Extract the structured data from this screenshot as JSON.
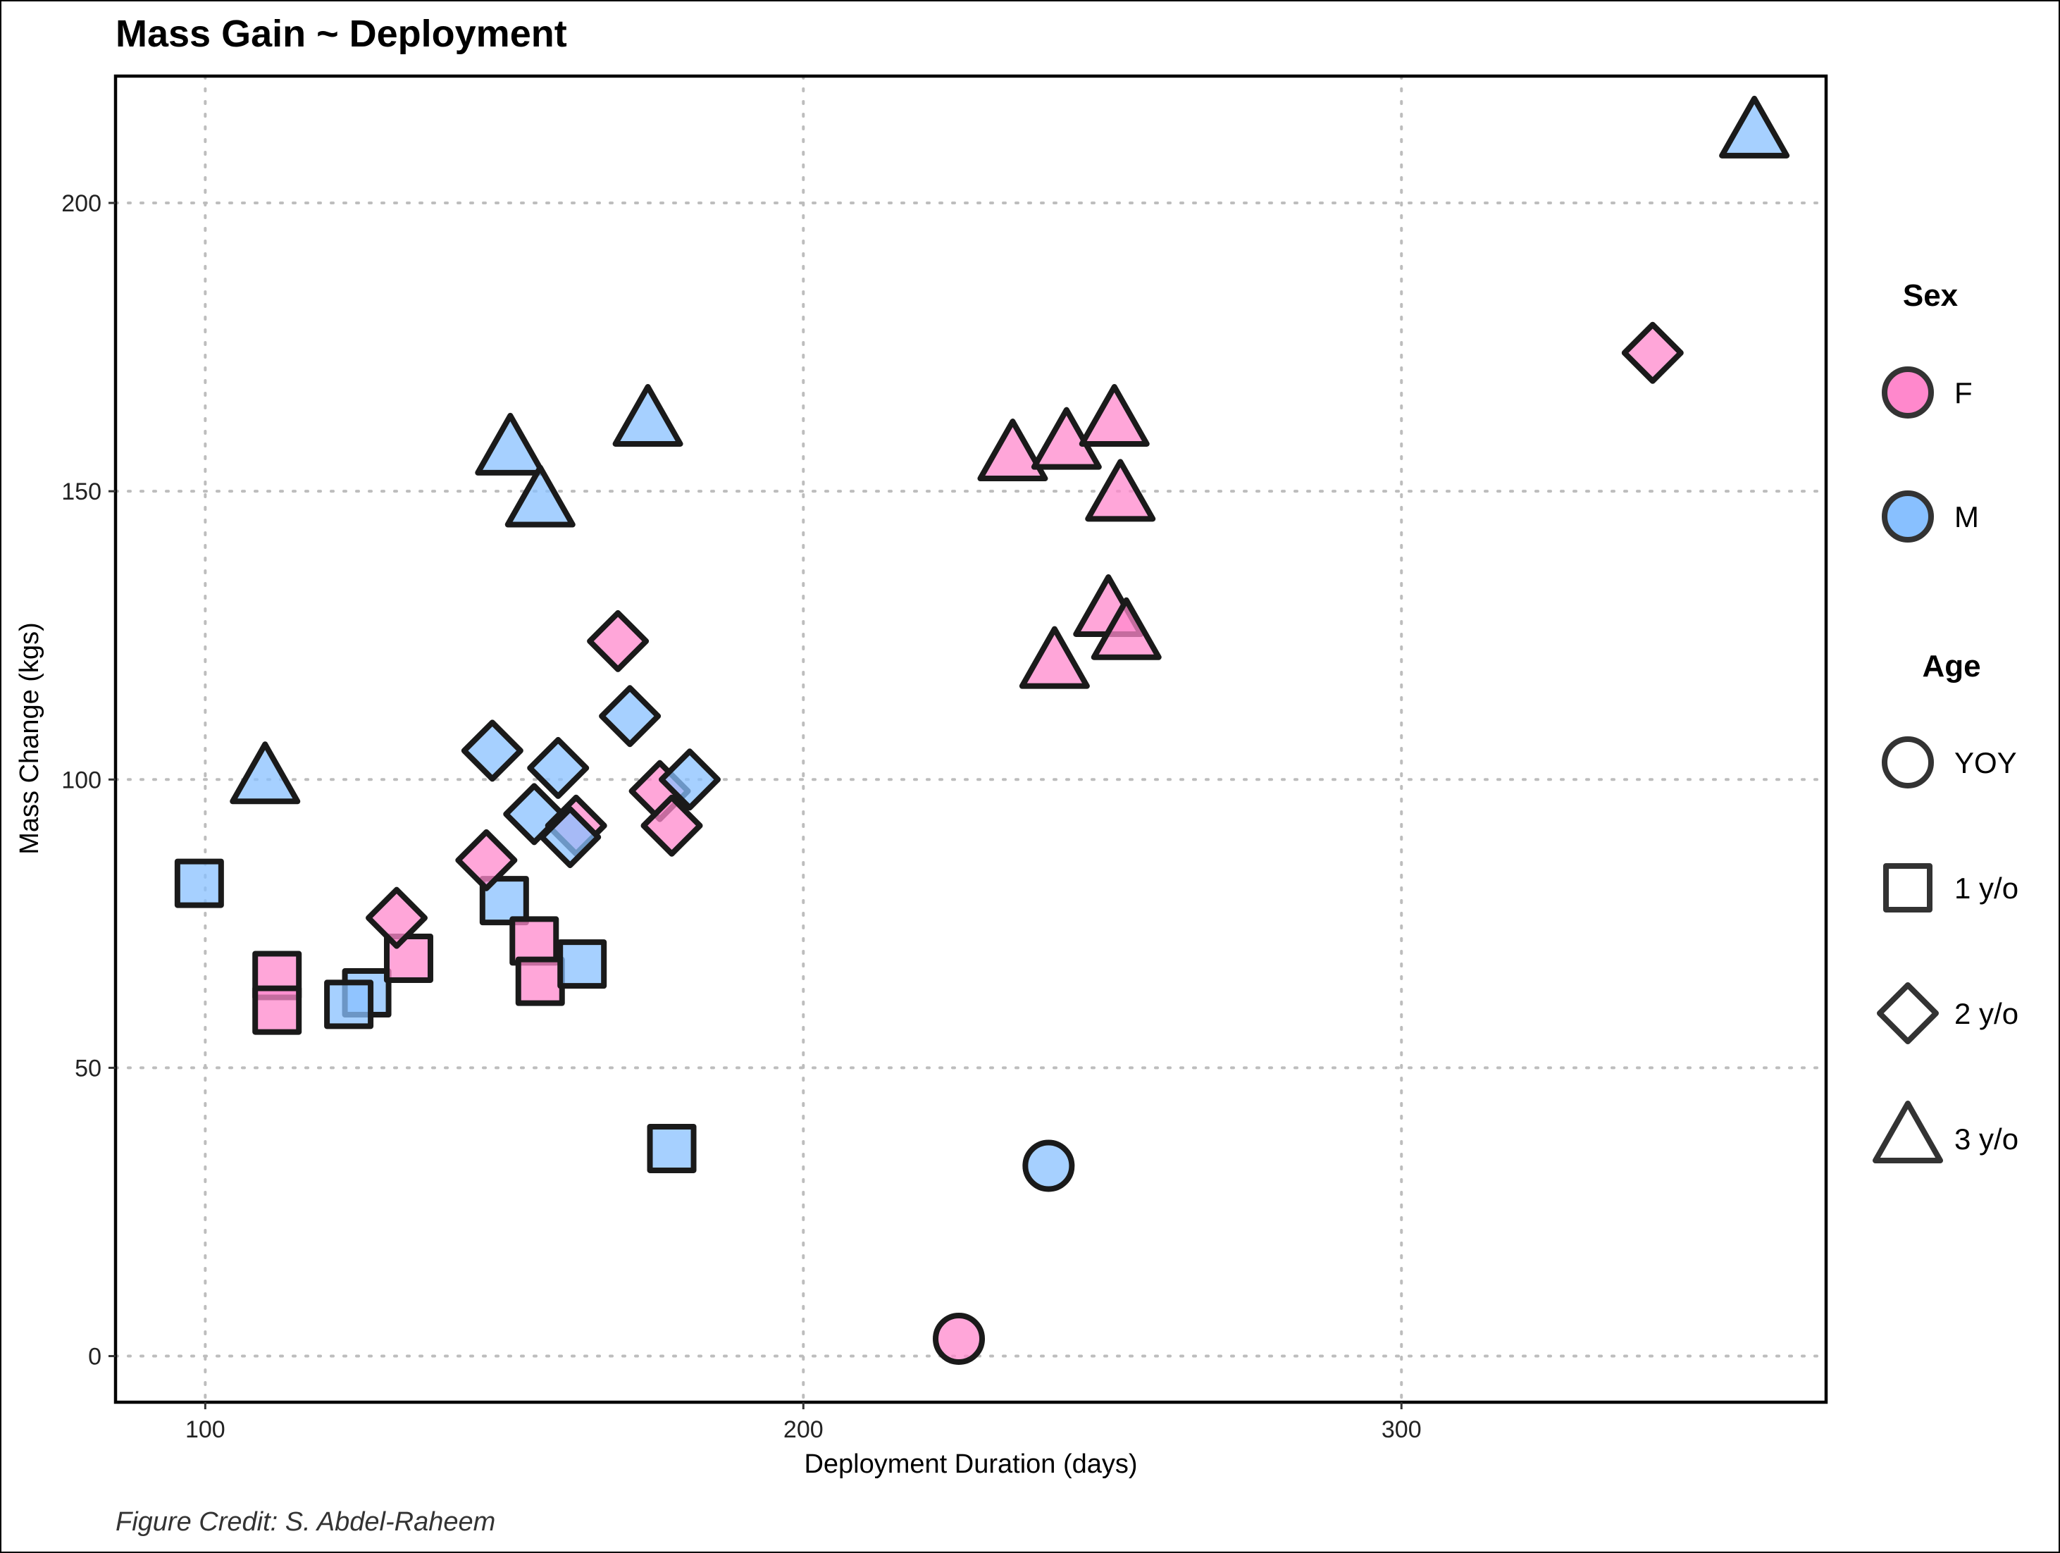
{
  "chart_data": {
    "type": "scatter",
    "title": "Mass Gain ~ Deployment",
    "xlabel": "Deployment Duration (days)",
    "ylabel": "Mass Change (kgs)",
    "xlim": [
      85,
      371
    ],
    "ylim": [
      -8,
      222
    ],
    "x_ticks": [
      100,
      200,
      300
    ],
    "y_ticks": [
      0,
      50,
      100,
      150,
      200
    ],
    "grid": true,
    "legend_position": "right",
    "caption": "Figure Credit: S. Abdel-Raheem",
    "colors": {
      "F": "#ff88cc",
      "M": "#88c0ff"
    },
    "legend": {
      "color_title": "Sex",
      "color_entries": [
        {
          "key": "F",
          "label": "F"
        },
        {
          "key": "M",
          "label": "M"
        }
      ],
      "shape_title": "Age",
      "shape_entries": [
        {
          "key": "YOY",
          "label": "YOY",
          "shape": "circle"
        },
        {
          "key": "1",
          "label": "1 y/o",
          "shape": "square"
        },
        {
          "key": "2",
          "label": "2 y/o",
          "shape": "diamond"
        },
        {
          "key": "3",
          "label": "3 y/o",
          "shape": "triangle"
        }
      ]
    },
    "points": [
      {
        "x": 99,
        "y": 82,
        "sex": "M",
        "age": "1"
      },
      {
        "x": 112,
        "y": 66,
        "sex": "F",
        "age": "1"
      },
      {
        "x": 112,
        "y": 60,
        "sex": "F",
        "age": "1"
      },
      {
        "x": 127,
        "y": 63,
        "sex": "M",
        "age": "1"
      },
      {
        "x": 124,
        "y": 61,
        "sex": "M",
        "age": "1"
      },
      {
        "x": 134,
        "y": 69,
        "sex": "F",
        "age": "1"
      },
      {
        "x": 150,
        "y": 79,
        "sex": "M",
        "age": "1"
      },
      {
        "x": 155,
        "y": 72,
        "sex": "F",
        "age": "1"
      },
      {
        "x": 156,
        "y": 65,
        "sex": "F",
        "age": "1"
      },
      {
        "x": 163,
        "y": 68,
        "sex": "M",
        "age": "1"
      },
      {
        "x": 178,
        "y": 36,
        "sex": "M",
        "age": "1"
      },
      {
        "x": 132,
        "y": 76,
        "sex": "F",
        "age": "2"
      },
      {
        "x": 147,
        "y": 86,
        "sex": "F",
        "age": "2"
      },
      {
        "x": 148,
        "y": 105,
        "sex": "M",
        "age": "2"
      },
      {
        "x": 159,
        "y": 102,
        "sex": "M",
        "age": "2"
      },
      {
        "x": 155,
        "y": 94,
        "sex": "M",
        "age": "2"
      },
      {
        "x": 162,
        "y": 92,
        "sex": "F",
        "age": "2"
      },
      {
        "x": 161,
        "y": 90,
        "sex": "M",
        "age": "2"
      },
      {
        "x": 169,
        "y": 124,
        "sex": "F",
        "age": "2"
      },
      {
        "x": 171,
        "y": 111,
        "sex": "M",
        "age": "2"
      },
      {
        "x": 176,
        "y": 98,
        "sex": "F",
        "age": "2"
      },
      {
        "x": 178,
        "y": 92,
        "sex": "F",
        "age": "2"
      },
      {
        "x": 181,
        "y": 100,
        "sex": "M",
        "age": "2"
      },
      {
        "x": 342,
        "y": 174,
        "sex": "F",
        "age": "2"
      },
      {
        "x": 110,
        "y": 100,
        "sex": "M",
        "age": "3"
      },
      {
        "x": 151,
        "y": 157,
        "sex": "M",
        "age": "3"
      },
      {
        "x": 156,
        "y": 148,
        "sex": "M",
        "age": "3"
      },
      {
        "x": 174,
        "y": 162,
        "sex": "M",
        "age": "3"
      },
      {
        "x": 235,
        "y": 156,
        "sex": "F",
        "age": "3"
      },
      {
        "x": 244,
        "y": 158,
        "sex": "F",
        "age": "3"
      },
      {
        "x": 252,
        "y": 162,
        "sex": "F",
        "age": "3"
      },
      {
        "x": 253,
        "y": 149,
        "sex": "F",
        "age": "3"
      },
      {
        "x": 251,
        "y": 129,
        "sex": "F",
        "age": "3"
      },
      {
        "x": 254,
        "y": 125,
        "sex": "F",
        "age": "3"
      },
      {
        "x": 242,
        "y": 120,
        "sex": "F",
        "age": "3"
      },
      {
        "x": 359,
        "y": 212,
        "sex": "M",
        "age": "3"
      },
      {
        "x": 226,
        "y": 3,
        "sex": "F",
        "age": "YOY"
      },
      {
        "x": 241,
        "y": 33,
        "sex": "M",
        "age": "YOY"
      }
    ]
  }
}
